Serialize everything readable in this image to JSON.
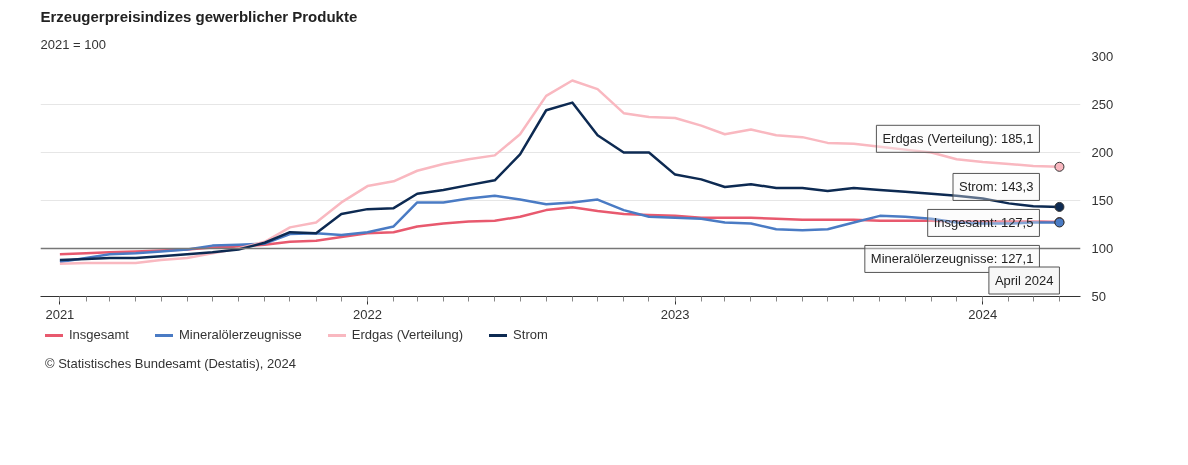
{
  "chart_data": {
    "type": "line",
    "title": "Erzeugerpreisindizes gewerblicher Produkte",
    "subtitle": "2021 = 100",
    "x": [
      "2021-01",
      "2021-02",
      "2021-03",
      "2021-04",
      "2021-05",
      "2021-06",
      "2021-07",
      "2021-08",
      "2021-09",
      "2021-10",
      "2021-11",
      "2021-12",
      "2022-01",
      "2022-02",
      "2022-03",
      "2022-04",
      "2022-05",
      "2022-06",
      "2022-07",
      "2022-08",
      "2022-09",
      "2022-10",
      "2022-11",
      "2022-12",
      "2023-01",
      "2023-02",
      "2023-03",
      "2023-04",
      "2023-05",
      "2023-06",
      "2023-07",
      "2023-08",
      "2023-09",
      "2023-10",
      "2023-11",
      "2023-12",
      "2024-01",
      "2024-02",
      "2024-03",
      "2024-04"
    ],
    "series": [
      {
        "name": "Insgesamt",
        "color": "#e8596e",
        "values": [
          94,
          95,
          96,
          97,
          98,
          99,
          101,
          102,
          104,
          107,
          108,
          112,
          116,
          117,
          123,
          126,
          128,
          129,
          133,
          140,
          143,
          139,
          136,
          135,
          134,
          132,
          132,
          132,
          131,
          130,
          130,
          130,
          129,
          129,
          129,
          128,
          128,
          128,
          128,
          127.5
        ]
      },
      {
        "name": "Mineralölerzeugnisse",
        "color": "#4a7bc4",
        "values": [
          86,
          90,
          94,
          95,
          97,
          99,
          103,
          104,
          105,
          115,
          116,
          114,
          117,
          123,
          148,
          148,
          152,
          155,
          151,
          146,
          148,
          151,
          140,
          133,
          132,
          131,
          127,
          126,
          120,
          119,
          120,
          127,
          134,
          133,
          131,
          127,
          126,
          126,
          127,
          127.1
        ]
      },
      {
        "name": "Erdgas (Verteilung)",
        "color": "#f9b8c0",
        "values": [
          84,
          85,
          85,
          85,
          88,
          90,
          95,
          100,
          107,
          122,
          127,
          148,
          165,
          170,
          181,
          188,
          193,
          197,
          219,
          259,
          275,
          266,
          241,
          237,
          236,
          228,
          219,
          224,
          218,
          216,
          210,
          209,
          206,
          203,
          200,
          193,
          190,
          188,
          186,
          185.1
        ]
      },
      {
        "name": "Strom",
        "color": "#0d2a52",
        "values": [
          88,
          89,
          90,
          90,
          92,
          94,
          96,
          99,
          106,
          117,
          116,
          136,
          141,
          142,
          157,
          161,
          166,
          171,
          198,
          244,
          252,
          218,
          200,
          200,
          177,
          172,
          164,
          167,
          163,
          163,
          160,
          163,
          161,
          159,
          157,
          155,
          152,
          147,
          144,
          143.3
        ]
      }
    ],
    "xlim": [
      "2020-12-09",
      "2024-04-26"
    ],
    "xticks": [
      {
        "value": "2021",
        "label": "2021"
      },
      {
        "value": "2022",
        "label": "2022"
      },
      {
        "value": "2023",
        "label": "2023"
      },
      {
        "value": "2024",
        "label": "2024"
      }
    ],
    "ylim": [
      50,
      300
    ],
    "yticks": [
      50,
      100,
      150,
      200,
      250,
      300
    ],
    "ref_lines": [
      {
        "axis": "y",
        "value": 100,
        "color": "#777777"
      }
    ],
    "grid": "y",
    "legend": "bottom",
    "marker": "none",
    "line_style": "solid",
    "annotations": [
      {
        "text": "Erdgas (Verteilung): 185,1",
        "x": "2024-04",
        "y": 185.1
      },
      {
        "text": "Strom: 143,3",
        "x": "2024-04",
        "y": 143.3
      },
      {
        "text": "Insgesamt: 127,5",
        "x": "2024-04",
        "y": 127.5
      },
      {
        "text": "Mineralölerzeugnisse: 127,1",
        "x": "2024-04",
        "y": 127.1
      },
      "April 2024",
      "© Statistisches Bundesamt (Destatis), 2024"
    ]
  }
}
